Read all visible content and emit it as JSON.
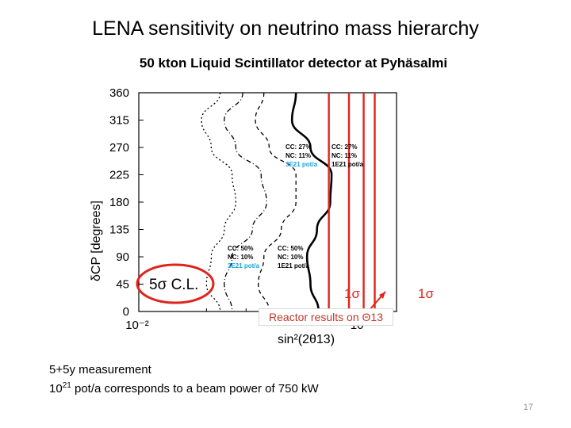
{
  "slide": {
    "title": "LENA sensitivity on neutrino mass hierarchy",
    "subtitle": "50 kton Liquid Scintillator detector at Pyhäsalmi",
    "reactor_label": "Reactor results on Θ13",
    "notes_line1": "5+5y measurement",
    "notes_line2": "10^21 pot/a   corresponds to a beam power of 750 kW",
    "notes_line2_base": "10",
    "notes_line2_exp": "21",
    "notes_line2_rest": " pot/a   corresponds to a beam power of 750 kW",
    "page_number": "17"
  },
  "colors": {
    "accent_red": "#e0241c",
    "reactor_text": "#c0392b",
    "annotation_blue": "#1aa3e0"
  },
  "chart_data": {
    "type": "line",
    "xlabel": "sin²(2θ13)",
    "ylabel": "δCP [degrees]",
    "x_scale": "log",
    "xlim": [
      0.01,
      0.14
    ],
    "ylim": [
      0,
      360
    ],
    "x_ticks": [
      "10⁻²",
      "10⁻¹"
    ],
    "y_ticks": [
      "0",
      "45",
      "90",
      "135",
      "180",
      "225",
      "270",
      "315",
      "360"
    ],
    "grid": false,
    "annotations": {
      "cl_label": "5σ C.L.",
      "one_sigma": "1σ",
      "top_left": [
        "CC: 27%",
        "NC: 11%",
        "3E21 pot/a"
      ],
      "top_right": [
        "CC: 27%",
        "NC: 11%",
        "1E21 pot/a"
      ],
      "bottom_left": [
        "CC: 50%",
        "NC: 10%",
        "3E21 pot/a"
      ],
      "bottom_right": [
        "CC: 50%",
        "NC: 10%",
        "1E21 pot/a"
      ]
    },
    "series": [
      {
        "style": "dotted",
        "x": [
          0.023,
          0.019,
          0.021,
          0.026,
          0.027,
          0.024,
          0.021,
          0.02,
          0.023
        ],
        "y": [
          360,
          315,
          270,
          225,
          180,
          135,
          90,
          45,
          0
        ]
      },
      {
        "style": "dash-dot",
        "x": [
          0.029,
          0.024,
          0.027,
          0.035,
          0.037,
          0.032,
          0.026,
          0.024,
          0.026
        ],
        "y": [
          360,
          315,
          270,
          225,
          180,
          135,
          90,
          45,
          0
        ]
      },
      {
        "style": "dashed",
        "x": [
          0.036,
          0.033,
          0.038,
          0.05,
          0.05,
          0.043,
          0.036,
          0.034,
          0.038
        ],
        "y": [
          360,
          315,
          270,
          225,
          180,
          135,
          90,
          45,
          0
        ]
      },
      {
        "style": "solid",
        "x": [
          0.05,
          0.048,
          0.058,
          0.072,
          0.071,
          0.062,
          0.056,
          0.058,
          0.063
        ],
        "y": [
          360,
          315,
          270,
          225,
          180,
          135,
          90,
          45,
          0
        ]
      }
    ],
    "one_sigma_bands": [
      0.07,
      0.086,
      0.1,
      0.112
    ]
  }
}
